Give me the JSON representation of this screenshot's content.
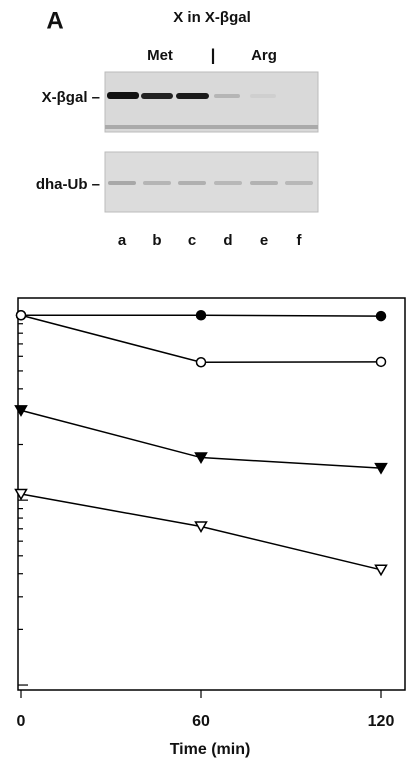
{
  "figure": {
    "panel_label": "A",
    "title": "X in X-βgal",
    "group_left": "Met",
    "separator": "|",
    "group_right": "Arg",
    "gel_labels": [
      "X-βgal –",
      "dha-Ub –"
    ],
    "lanes": [
      "a",
      "b",
      "c",
      "d",
      "e",
      "f"
    ]
  },
  "chart_data": {
    "type": "line",
    "x_label": "Time (min)",
    "x": [
      0,
      60,
      120
    ],
    "xlim": [
      -1,
      128
    ],
    "xticks": [
      0,
      60,
      120
    ],
    "ylim": [
      0.94,
      124
    ],
    "yscale": "log",
    "yticks": [
      1,
      2,
      3,
      4,
      5,
      6,
      7,
      8,
      9,
      10,
      20,
      30,
      40,
      50,
      60,
      70,
      80,
      90,
      100
    ],
    "series": [
      {
        "color": "#000000",
        "marker": "circle-filled",
        "values": [
          100,
          100,
          99
        ]
      },
      {
        "color": "#000000",
        "marker": "circle-open",
        "values": [
          100,
          55.7,
          56
        ]
      },
      {
        "color": "#000000",
        "marker": "triangle-filled",
        "values": [
          30.6,
          17,
          14.9
        ]
      },
      {
        "color": "#000000",
        "marker": "triangle-open",
        "values": [
          10.8,
          7.2,
          4.2
        ]
      }
    ]
  }
}
